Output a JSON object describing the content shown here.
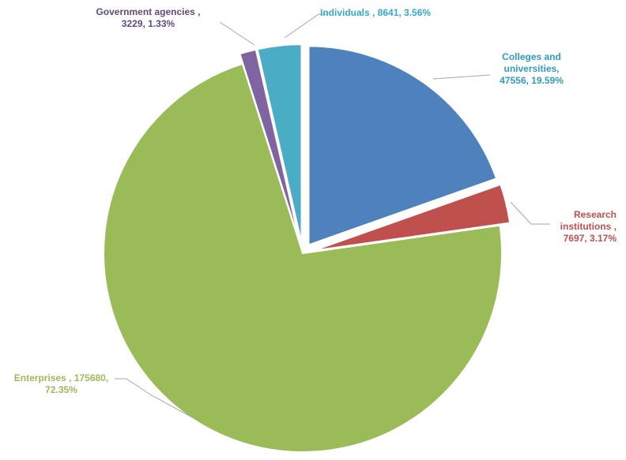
{
  "chart_data": {
    "type": "pie",
    "title": "",
    "slices": [
      {
        "name": "Colleges and universities",
        "value": 47556,
        "percent": 19.59,
        "color": "#4F81BD",
        "label_lines": [
          "Colleges and",
          "universities,",
          "47556, 19.59%"
        ]
      },
      {
        "name": "Research institutions",
        "value": 7697,
        "percent": 3.17,
        "color": "#C0504D",
        "label_lines": [
          "Research",
          "institutions ,",
          "7697, 3.17%"
        ]
      },
      {
        "name": "Enterprises",
        "value": 175680,
        "percent": 72.35,
        "color": "#9BBB59",
        "label_lines": [
          "Enterprises , 175680,",
          "72.35%"
        ]
      },
      {
        "name": "Government agencies",
        "value": 3229,
        "percent": 1.33,
        "color": "#8064A2",
        "label_lines": [
          "Government agencies ,",
          "3229, 1.33%"
        ]
      },
      {
        "name": "Individuals",
        "value": 8641,
        "percent": 3.56,
        "color": "#4BACC6",
        "label_lines": [
          "Individuals , 8641, 3.56%"
        ]
      }
    ],
    "label_text_colors": {
      "Colleges and universities": "#2E9BC4",
      "Research institutions": "#C0504D",
      "Enterprises": "#9BBB59",
      "Government agencies": "#5E4B7E",
      "Individuals": "#33A8D0"
    },
    "exploded": true,
    "legend": "none"
  }
}
